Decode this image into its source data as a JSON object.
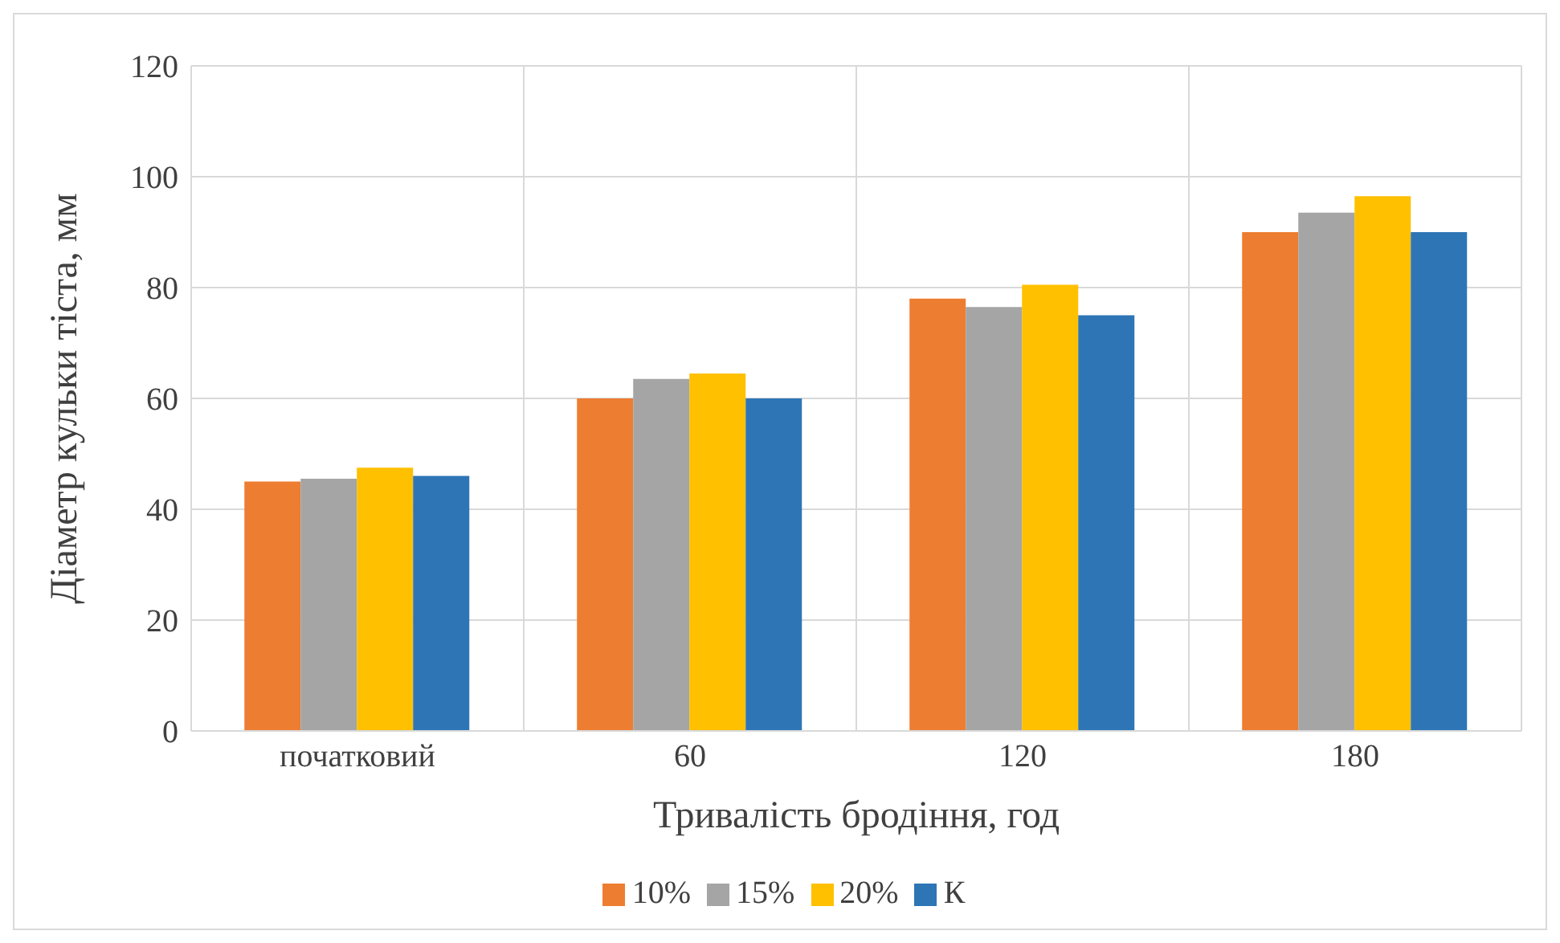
{
  "chart_data": {
    "type": "bar",
    "xlabel": "Тривалість бродіння, год",
    "ylabel": "Діаметр кульки тіста, мм",
    "categories": [
      "початковий",
      "60",
      "120",
      "180"
    ],
    "series": [
      {
        "name": "10%",
        "color": "#ed7d31",
        "values": [
          45,
          60,
          78,
          90
        ]
      },
      {
        "name": "15%",
        "color": "#a5a5a5",
        "values": [
          45.5,
          63.5,
          76.5,
          93.5
        ]
      },
      {
        "name": "20%",
        "color": "#ffc000",
        "values": [
          47.5,
          64.5,
          80.5,
          96.5
        ]
      },
      {
        "name": "К",
        "color": "#2e75b6",
        "values": [
          46,
          60,
          75,
          90
        ]
      }
    ],
    "ylim": [
      0,
      120
    ],
    "yticks": [
      0,
      20,
      40,
      60,
      80,
      100,
      120
    ],
    "grid": true,
    "legend": "bottom"
  }
}
